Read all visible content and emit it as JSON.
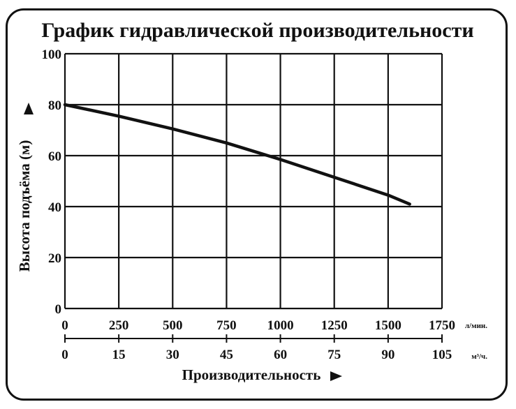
{
  "chart_data": {
    "type": "line",
    "title": "График гидравлической производительности",
    "ylabel": "Высота подъёма (м)",
    "xlabel": "Производительность",
    "ylim": [
      0,
      100
    ],
    "xlim": [
      0,
      1750
    ],
    "yticks": [
      "0",
      "20",
      "40",
      "60",
      "80",
      "100"
    ],
    "xticks_primary": [
      "0",
      "250",
      "500",
      "750",
      "1000",
      "1250",
      "1500",
      "1750"
    ],
    "xticks_secondary": [
      "0",
      "15",
      "30",
      "45",
      "60",
      "75",
      "90",
      "105"
    ],
    "x_primary_unit": "л/мин.",
    "x_secondary_unit": "м³/ч.",
    "grid": true,
    "series": [
      {
        "x": [
          0,
          250,
          500,
          750,
          1000,
          1250,
          1500,
          1600
        ],
        "y": [
          80,
          75.5,
          70.5,
          65,
          58.5,
          51.5,
          44.5,
          41
        ]
      }
    ]
  },
  "colors": {
    "line": "#111111",
    "grid": "#111111",
    "frame": "#111111"
  }
}
